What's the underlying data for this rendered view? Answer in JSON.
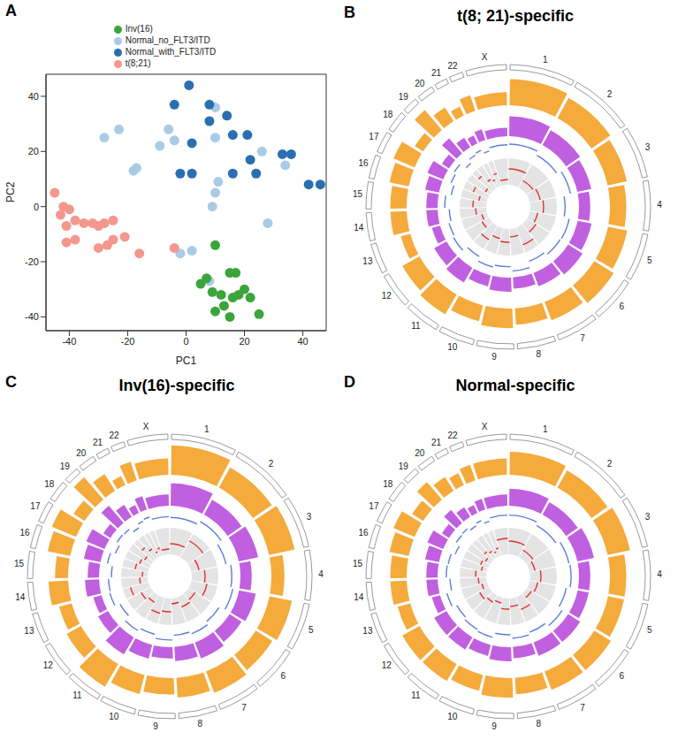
{
  "chart_data": [
    {
      "type": "scatter",
      "panel": "A",
      "xlabel": "PC1",
      "ylabel": "PC2",
      "xlim": [
        -48,
        48
      ],
      "xticks": [
        -40,
        -20,
        0,
        20,
        40
      ],
      "ylim": [
        -45,
        48
      ],
      "yticks": [
        -40,
        -20,
        0,
        20,
        40
      ],
      "grid": false,
      "legend": "top",
      "series": [
        {
          "name": "Normal_no_FLT3/ITD",
          "color": "#a9cbe6",
          "marker": "circle",
          "x": [
            -28,
            -23,
            -17,
            -18,
            -9,
            -4,
            -6,
            10,
            10,
            11,
            10,
            9,
            2,
            28,
            34,
            26,
            8,
            -2
          ],
          "y": [
            25,
            28,
            14,
            13,
            22,
            24,
            28,
            36,
            25,
            9,
            5,
            0,
            -16,
            -6,
            15,
            20,
            -27,
            -17
          ]
        },
        {
          "name": "Normal_with_FLT3/ITD",
          "color": "#2a6fb0",
          "marker": "circle",
          "x": [
            1,
            -4,
            8,
            8,
            14,
            2,
            -2,
            2,
            16,
            21,
            22,
            24,
            33,
            36,
            42,
            46,
            16
          ],
          "y": [
            44,
            37,
            31,
            37,
            33,
            23,
            12,
            12,
            26,
            26,
            17,
            12,
            19,
            19,
            8,
            8,
            12
          ]
        },
        {
          "name": "Inv(16)",
          "color": "#3aa53a",
          "marker": "circle",
          "x": [
            10,
            7,
            5,
            9,
            12,
            15,
            17,
            16,
            18,
            13,
            10,
            15,
            22,
            25,
            20
          ],
          "y": [
            -14,
            -26,
            -28,
            -31,
            -32,
            -24,
            -24,
            -33,
            -32,
            -36,
            -38,
            -40,
            -33,
            -39,
            -30
          ]
        },
        {
          "name": "t(8;21)",
          "color": "#f4978e",
          "marker": "circle",
          "x": [
            -45,
            -43,
            -42,
            -40,
            -38,
            -41,
            -38,
            -35,
            -32,
            -30,
            -28,
            -25,
            -25,
            -21,
            -27,
            -30,
            -16,
            -4,
            -41
          ],
          "y": [
            5,
            -3,
            0,
            -1,
            -12,
            -7,
            -5,
            -6,
            -6,
            -7,
            -6,
            -5,
            -12,
            -11,
            -14,
            -15,
            -17,
            -15,
            -13
          ]
        }
      ]
    },
    {
      "type": "circos",
      "panel": "B",
      "title": "t(8; 21)-specific",
      "chromosomes": [
        "1",
        "2",
        "3",
        "4",
        "5",
        "6",
        "7",
        "8",
        "9",
        "10",
        "11",
        "12",
        "13",
        "14",
        "15",
        "16",
        "17",
        "18",
        "19",
        "20",
        "21",
        "22",
        "X"
      ],
      "chromosome_lengths": [
        249,
        243,
        198,
        191,
        181,
        171,
        159,
        146,
        141,
        136,
        135,
        134,
        115,
        107,
        103,
        90,
        81,
        78,
        59,
        63,
        48,
        51,
        155
      ],
      "tracks": [
        {
          "type": "bar",
          "color": "#f5aa3c",
          "values": [
            0.8,
            0.7,
            0.6,
            0.5,
            0.6,
            0.7,
            0.6,
            0.5,
            0.6,
            0.5,
            0.7,
            0.6,
            0.3,
            0.5,
            0.5,
            0.6,
            0.7,
            0.3,
            0.8,
            0.5,
            0.3,
            0.5,
            0.4
          ]
        },
        {
          "type": "bar",
          "color": "#c060e0",
          "values": [
            0.7,
            0.6,
            0.5,
            0.4,
            0.5,
            0.6,
            0.5,
            0.4,
            0.5,
            0.4,
            0.6,
            0.5,
            0.3,
            0.4,
            0.4,
            0.5,
            0.6,
            0.3,
            0.7,
            0.4,
            0.3,
            0.4,
            0.3
          ]
        },
        {
          "type": "line",
          "color": "#5a7fd6",
          "values": [
            0.3,
            -0.2,
            0.4,
            -0.5,
            0.2,
            0.1,
            -0.3,
            0.5,
            -0.1,
            0.2,
            -0.4,
            0.3,
            0.1,
            -0.2,
            0.4,
            -0.3,
            0.2,
            0.5,
            -0.4,
            0.1,
            0.3,
            -0.2,
            0.2
          ]
        },
        {
          "type": "line",
          "color": "#e03030",
          "values": [
            0.6,
            0.3,
            0.4,
            0.5,
            0.3,
            0.4,
            0.7,
            0.3,
            0.5,
            0.4,
            0.6,
            0.3,
            0.2,
            0.4,
            0.5,
            0.3,
            0.6,
            0.2,
            0.7,
            0.4,
            0.3,
            0.5,
            0.2
          ]
        }
      ]
    },
    {
      "type": "circos",
      "panel": "C",
      "title": "Inv(16)-specific",
      "chromosomes": [
        "1",
        "2",
        "3",
        "4",
        "5",
        "6",
        "7",
        "8",
        "9",
        "10",
        "11",
        "12",
        "13",
        "14",
        "15",
        "16",
        "17",
        "18",
        "19",
        "20",
        "21",
        "22",
        "X"
      ],
      "chromosome_lengths": [
        249,
        243,
        198,
        191,
        181,
        171,
        159,
        146,
        141,
        136,
        135,
        134,
        115,
        107,
        103,
        90,
        81,
        78,
        59,
        63,
        48,
        51,
        155
      ],
      "tracks": [
        {
          "type": "bar",
          "color": "#f5aa3c",
          "values": [
            0.9,
            0.7,
            0.8,
            0.4,
            0.7,
            0.6,
            0.7,
            0.6,
            0.5,
            0.6,
            0.8,
            0.5,
            0.4,
            0.6,
            0.4,
            0.7,
            0.8,
            0.4,
            0.9,
            0.6,
            0.3,
            0.6,
            0.5
          ]
        },
        {
          "type": "bar",
          "color": "#c060e0",
          "values": [
            0.8,
            0.6,
            0.7,
            0.4,
            0.6,
            0.5,
            0.6,
            0.5,
            0.4,
            0.5,
            0.7,
            0.4,
            0.3,
            0.5,
            0.4,
            0.6,
            0.7,
            0.3,
            0.8,
            0.5,
            0.3,
            0.5,
            0.4
          ]
        },
        {
          "type": "line",
          "color": "#5a7fd6",
          "values": [
            -0.2,
            0.3,
            -0.4,
            0.2,
            0.5,
            -0.3,
            0.1,
            -0.2,
            0.4,
            -0.1,
            0.3,
            -0.5,
            0.2,
            0.1,
            -0.3,
            0.4,
            -0.2,
            0.3,
            0.2,
            -0.4,
            0.1,
            0.3,
            -0.1
          ]
        },
        {
          "type": "line",
          "color": "#e03030",
          "values": [
            0.4,
            0.7,
            0.3,
            0.5,
            0.6,
            0.3,
            0.4,
            0.2,
            0.5,
            0.6,
            0.3,
            0.4,
            0.7,
            0.3,
            0.2,
            0.5,
            0.4,
            0.3,
            0.6,
            0.4,
            0.2,
            0.3,
            0.2
          ]
        }
      ]
    },
    {
      "type": "circos",
      "panel": "D",
      "title": "Normal-specific",
      "chromosomes": [
        "1",
        "2",
        "3",
        "4",
        "5",
        "6",
        "7",
        "8",
        "9",
        "10",
        "11",
        "12",
        "13",
        "14",
        "15",
        "16",
        "17",
        "18",
        "19",
        "20",
        "21",
        "22",
        "X"
      ],
      "chromosome_lengths": [
        249,
        243,
        198,
        191,
        181,
        171,
        159,
        146,
        141,
        136,
        135,
        134,
        115,
        107,
        103,
        90,
        81,
        78,
        59,
        63,
        48,
        51,
        155
      ],
      "tracks": [
        {
          "type": "bar",
          "color": "#f5aa3c",
          "values": [
            0.7,
            0.6,
            0.7,
            0.5,
            0.5,
            0.6,
            0.6,
            0.5,
            0.6,
            0.5,
            0.6,
            0.6,
            0.4,
            0.5,
            0.5,
            0.6,
            0.7,
            0.4,
            0.7,
            0.5,
            0.4,
            0.5,
            0.5
          ]
        },
        {
          "type": "bar",
          "color": "#c060e0",
          "values": [
            0.6,
            0.5,
            0.6,
            0.4,
            0.4,
            0.5,
            0.5,
            0.4,
            0.5,
            0.4,
            0.5,
            0.5,
            0.3,
            0.4,
            0.4,
            0.5,
            0.6,
            0.3,
            0.6,
            0.4,
            0.3,
            0.4,
            0.4
          ]
        },
        {
          "type": "line",
          "color": "#5a7fd6",
          "values": [
            0.1,
            -0.3,
            0.2,
            0.3,
            -0.2,
            0.4,
            -0.1,
            0.2,
            -0.3,
            0.3,
            0.1,
            -0.2,
            0.4,
            -0.3,
            0.2,
            0.1,
            -0.4,
            0.2,
            0.3,
            -0.1,
            0.2,
            -0.3,
            0.1
          ]
        },
        {
          "type": "line",
          "color": "#e03030",
          "values": [
            0.5,
            0.3,
            0.2,
            0.4,
            0.3,
            0.2,
            0.5,
            0.3,
            0.4,
            0.2,
            0.3,
            0.4,
            0.2,
            0.3,
            0.4,
            0.2,
            0.3,
            0.2,
            0.4,
            0.3,
            0.2,
            0.3,
            0.6
          ]
        }
      ]
    }
  ]
}
